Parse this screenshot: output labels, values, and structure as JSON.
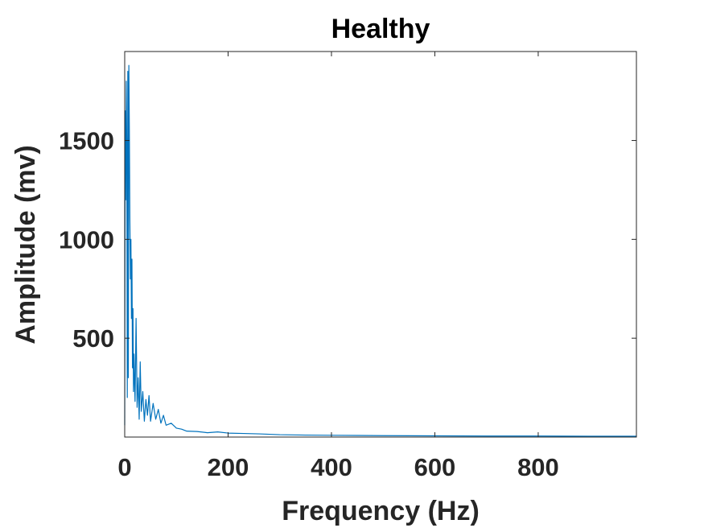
{
  "chart_data": {
    "type": "line",
    "title": "Healthy",
    "xlabel": "Frequency (Hz)",
    "ylabel": "Amplitude (mv)",
    "xlim": [
      0,
      990
    ],
    "ylim": [
      0,
      1950
    ],
    "x_ticks": [
      0,
      200,
      400,
      600,
      800
    ],
    "x_tick_labels": [
      "0",
      "200",
      "400",
      "600",
      "800"
    ],
    "y_ticks": [
      500,
      1000,
      1500
    ],
    "y_tick_labels": [
      "500",
      "1000",
      "1500"
    ],
    "grid": false,
    "box": true,
    "series": [
      {
        "color": "#0072BD",
        "x": [
          0,
          1,
          2,
          3,
          4,
          5,
          6,
          7,
          8,
          9,
          10,
          11,
          12,
          13,
          14,
          15,
          16,
          17,
          18,
          19,
          20,
          22,
          24,
          26,
          28,
          30,
          32,
          35,
          38,
          41,
          44,
          47,
          50,
          55,
          60,
          65,
          70,
          75,
          80,
          90,
          100,
          110,
          120,
          140,
          160,
          180,
          200,
          230,
          260,
          300,
          350,
          400,
          450,
          500,
          600,
          700,
          800,
          900,
          990
        ],
        "y": [
          60,
          1650,
          1200,
          1800,
          1450,
          200,
          1850,
          300,
          1880,
          1550,
          1100,
          800,
          1000,
          600,
          900,
          350,
          650,
          230,
          420,
          280,
          180,
          600,
          150,
          300,
          90,
          380,
          130,
          230,
          80,
          190,
          110,
          210,
          80,
          170,
          90,
          140,
          70,
          110,
          60,
          70,
          45,
          40,
          30,
          28,
          22,
          26,
          20,
          18,
          16,
          12,
          10,
          9,
          8,
          7,
          6,
          5,
          5,
          4,
          4
        ]
      }
    ]
  }
}
